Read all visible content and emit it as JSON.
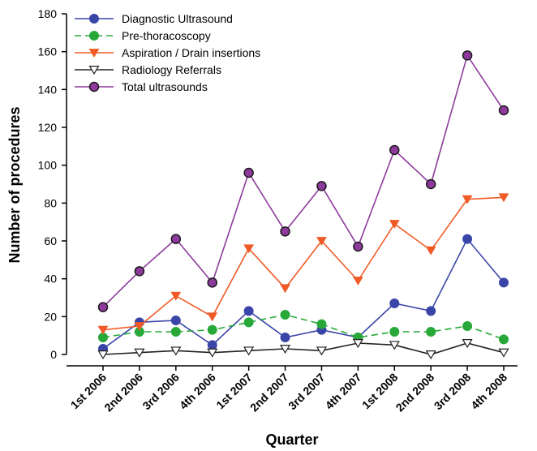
{
  "chart_data": {
    "type": "line",
    "title": "",
    "xlabel": "Quarter",
    "ylabel": "Number of procedures",
    "ylim": [
      0,
      180
    ],
    "yticks": [
      "0",
      "20",
      "40",
      "60",
      "80",
      "100",
      "120",
      "140",
      "160",
      "180"
    ],
    "categories": [
      "1st 2006",
      "2nd 2006",
      "3rd 2006",
      "4th 2006",
      "1st 2007",
      "2nd 2007",
      "3rd 2007",
      "4th 2007",
      "1st 2008",
      "2nd 2008",
      "3rd 2008",
      "4th 2008"
    ],
    "grid": false,
    "legend_position": "top-left",
    "series": [
      {
        "name": "Diagnostic Ultrasound",
        "color": "#3a45a8",
        "marker": "circle",
        "dash": "solid",
        "values": [
          3,
          17,
          18,
          5,
          23,
          9,
          13,
          9,
          27,
          23,
          61,
          38
        ]
      },
      {
        "name": "Pre-thoracoscopy",
        "color": "#27a839",
        "marker": "circle",
        "dash": "dashed",
        "values": [
          9,
          12,
          12,
          13,
          17,
          21,
          16,
          9,
          12,
          12,
          15,
          8
        ]
      },
      {
        "name": "Aspiration / Drain insertions",
        "color": "#f05a26",
        "marker": "triangle-down",
        "dash": "solid",
        "values": [
          13,
          15,
          31,
          20,
          56,
          35,
          60,
          39,
          69,
          55,
          82,
          83
        ]
      },
      {
        "name": "Radiology Referrals",
        "color": "#222222",
        "marker": "triangle-down-open",
        "dash": "solid",
        "values": [
          0,
          1,
          2,
          1,
          2,
          3,
          2,
          6,
          5,
          0,
          6,
          1
        ]
      },
      {
        "name": "Total ultrasounds",
        "color": "#8e3a9c",
        "marker": "circle-dark",
        "dash": "solid",
        "values": [
          25,
          44,
          61,
          38,
          96,
          65,
          89,
          57,
          108,
          90,
          158,
          129
        ]
      }
    ]
  }
}
